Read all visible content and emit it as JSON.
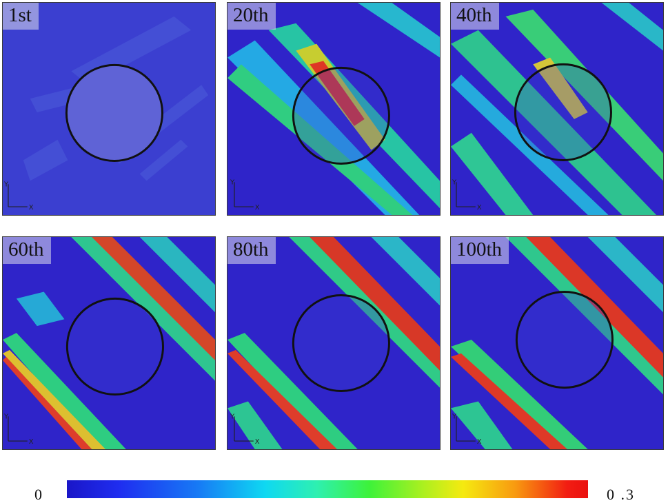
{
  "panels": [
    {
      "label": "1st"
    },
    {
      "label": "20th"
    },
    {
      "label": "40th"
    },
    {
      "label": "60th"
    },
    {
      "label": "80th"
    },
    {
      "label": "100th"
    }
  ],
  "colorbar": {
    "min_label": "0",
    "max_label": "0 .3"
  },
  "colors": {
    "background": "#2f24c9",
    "low": "#1a16c8",
    "mid": "#3df23a",
    "high": "#f21d12"
  }
}
